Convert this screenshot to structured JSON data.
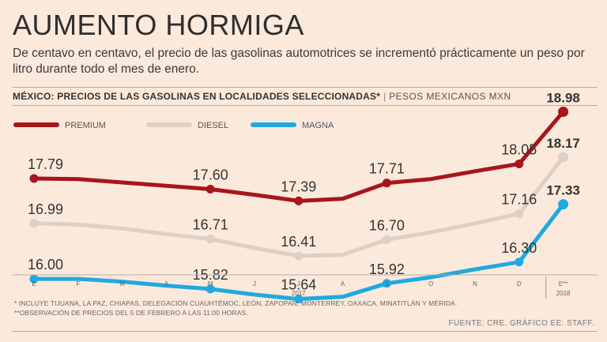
{
  "title": "AUMENTO HORMIGA",
  "subtitle": "De centavo en centavo, el precio de las gasolinas automotrices se incrementó prácticamente un peso por litro durante todo el mes de enero.",
  "header": {
    "bold": "MÉXICO: PRECIOS DE LAS GASOLINAS EN LOCALIDADES SELECCIONADAS*",
    "separator": "|",
    "unit": "PESOS MEXICANOS MXN"
  },
  "chart_data": {
    "type": "line",
    "title": "MÉXICO: PRECIOS DE LAS GASOLINAS EN LOCALIDADES SELECCIONADAS*",
    "ylabel": "PESOS MEXICANOS MXN",
    "categories": [
      "E",
      "F",
      "M",
      "A",
      "M",
      "J",
      "J",
      "A",
      "S",
      "O",
      "N",
      "D",
      "E**"
    ],
    "year_labels": [
      {
        "label": "2017",
        "index": 6
      },
      {
        "label": "2018",
        "index": 12
      }
    ],
    "series": [
      {
        "name": "PREMIUM",
        "color": "#a8151b",
        "values": [
          17.79,
          17.78,
          17.72,
          17.66,
          17.6,
          17.5,
          17.39,
          17.43,
          17.71,
          17.78,
          17.92,
          18.05,
          18.98
        ],
        "labels": {
          "0": "17.79",
          "4": "17.60",
          "6": "17.39",
          "8": "17.71",
          "11": "18.05",
          "12": "18.98"
        }
      },
      {
        "name": "DIESEL",
        "color": "#ddd0c4",
        "values": [
          16.99,
          16.97,
          16.9,
          16.8,
          16.71,
          16.55,
          16.41,
          16.43,
          16.7,
          16.83,
          16.99,
          17.16,
          18.17
        ],
        "labels": {
          "0": "16.99",
          "4": "16.71",
          "6": "16.41",
          "8": "16.70",
          "11": "17.16",
          "12": "18.17"
        }
      },
      {
        "name": "MAGNA",
        "color": "#20a9e1",
        "values": [
          16.0,
          16.0,
          15.95,
          15.88,
          15.82,
          15.72,
          15.64,
          15.68,
          15.92,
          16.03,
          16.17,
          16.3,
          17.33
        ],
        "labels": {
          "0": "16.00",
          "4": "15.82",
          "6": "15.64",
          "8": "15.92",
          "11": "16.30",
          "12": "17.33"
        }
      }
    ],
    "marker_indices": [
      0,
      4,
      6,
      8,
      11,
      12
    ],
    "bold_last_label": true,
    "legend_position": "top-left"
  },
  "footnotes": [
    "* INCLUYE TIJUANA, LA PAZ, CHIAPAS, DELEGACIÓN CUAUHTÉMOC, LEÓN, ZAPOPAN, MONTERREY, OAXACA, MINATITLÁN Y MÉRIDA.",
    "**OBSERVACIÓN DE PRECIOS DEL 5 DE FEBRERO A LAS 11:00 HORAS."
  ],
  "source": "FUENTE: CRE. GRÁFICO EE: STAFF."
}
